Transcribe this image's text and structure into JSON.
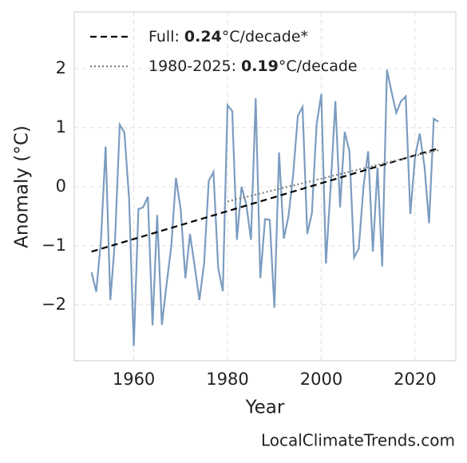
{
  "chart_data": {
    "type": "line",
    "xlabel": "Year",
    "ylabel": "Anomaly (°C)",
    "footer": "LocalClimateTrends.com",
    "xlim": [
      1947.3,
      2028.7
    ],
    "ylim": [
      -2.95,
      2.96
    ],
    "xticks": [
      1960,
      1980,
      2000,
      2020
    ],
    "yticks": [
      {
        "value": -2,
        "label": "−2"
      },
      {
        "value": -1,
        "label": "−1"
      },
      0,
      1,
      2
    ],
    "grid": true,
    "x": [
      1951,
      1952,
      1953,
      1954,
      1955,
      1956,
      1957,
      1958,
      1959,
      1960,
      1961,
      1962,
      1963,
      1964,
      1965,
      1966,
      1967,
      1968,
      1969,
      1970,
      1971,
      1972,
      1973,
      1974,
      1975,
      1976,
      1977,
      1978,
      1979,
      1980,
      1981,
      1982,
      1983,
      1984,
      1985,
      1986,
      1987,
      1988,
      1989,
      1990,
      1991,
      1992,
      1993,
      1994,
      1995,
      1996,
      1997,
      1998,
      1999,
      2000,
      2001,
      2002,
      2003,
      2004,
      2005,
      2006,
      2007,
      2008,
      2009,
      2010,
      2011,
      2012,
      2013,
      2014,
      2015,
      2016,
      2017,
      2018,
      2019,
      2020,
      2021,
      2022,
      2023,
      2024,
      2025
    ],
    "series": [
      {
        "color": "#7b9cc0",
        "values": [
          -1.45,
          -1.78,
          -0.9,
          0.68,
          -1.92,
          -0.9,
          1.05,
          0.92,
          -0.2,
          -2.7,
          -0.38,
          -0.35,
          -0.17,
          -2.35,
          -0.48,
          -2.34,
          -1.65,
          -1.0,
          0.15,
          -0.38,
          -1.55,
          -0.8,
          -1.35,
          -1.92,
          -1.3,
          0.1,
          0.25,
          -1.37,
          -1.77,
          1.38,
          1.28,
          -0.9,
          0.0,
          -0.3,
          -0.9,
          1.5,
          -1.55,
          -0.55,
          -0.56,
          -2.05,
          0.58,
          -0.88,
          -0.5,
          0.2,
          1.2,
          1.35,
          -0.8,
          -0.45,
          1.05,
          1.57,
          -1.3,
          0.0,
          1.45,
          -0.35,
          0.93,
          0.6,
          -1.2,
          -1.05,
          0.0,
          0.6,
          -1.1,
          0.32,
          -1.35,
          1.98,
          1.6,
          1.25,
          1.45,
          1.53,
          -0.46,
          0.5,
          0.9,
          0.35,
          -0.62,
          1.15,
          1.1
        ]
      }
    ],
    "trends": [
      {
        "name": "Full:",
        "rate": 0.24,
        "unit": "°C/decade*",
        "color": "#000000",
        "dash": "dashed",
        "x": [
          1951,
          2025
        ],
        "values": [
          -1.1,
          0.65
        ]
      },
      {
        "name": "1980-2025:",
        "rate": 0.19,
        "unit": "°C/decade",
        "color": "#808080",
        "dash": "dotted",
        "x": [
          1980,
          2025
        ],
        "values": [
          -0.25,
          0.62
        ]
      }
    ]
  }
}
